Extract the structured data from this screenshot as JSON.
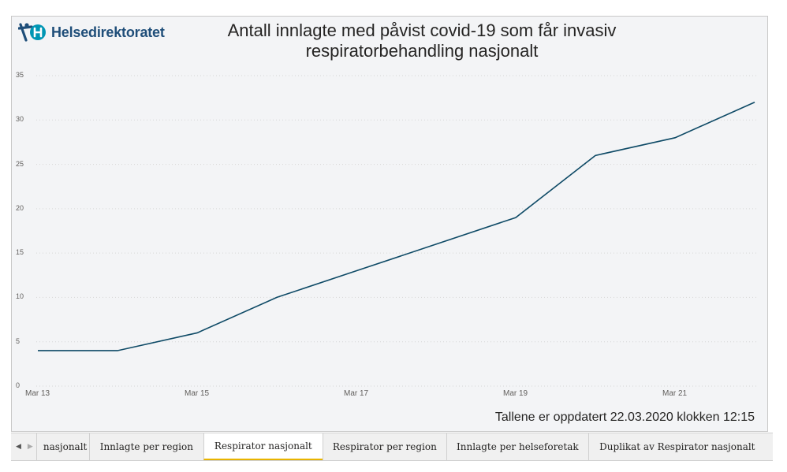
{
  "brand": {
    "name": "Helsedirektoratet",
    "colors": {
      "primary": "#1f4e79",
      "accent": "#0096b4"
    }
  },
  "chart_data": {
    "type": "line",
    "title": "Antall innlagte med påvist covid-19 som får invasiv respiratorbehandling nasjonalt",
    "x": [
      "Mar 13",
      "Mar 14",
      "Mar 15",
      "Mar 16",
      "Mar 17",
      "Mar 18",
      "Mar 19",
      "Mar 20",
      "Mar 21",
      "Mar 22"
    ],
    "x_tick_labels": [
      "Mar 13",
      "Mar 15",
      "Mar 17",
      "Mar 19",
      "Mar 21"
    ],
    "y_tick_labels": [
      "0",
      "5",
      "10",
      "15",
      "20",
      "25",
      "30",
      "35"
    ],
    "ylim": [
      0,
      35
    ],
    "series": [
      {
        "values": [
          4,
          4,
          6,
          10,
          13,
          16,
          19,
          26,
          28,
          32
        ],
        "color": "#0e4a66"
      }
    ],
    "grid": true
  },
  "footer_note": "Tallene er oppdatert 22.03.2020 klokken 12:15",
  "tabs": [
    {
      "label": "nasjonalt",
      "active": false
    },
    {
      "label": "Innlagte per region",
      "active": false
    },
    {
      "label": "Respirator nasjonalt",
      "active": true
    },
    {
      "label": "Respirator per region",
      "active": false
    },
    {
      "label": "Innlagte per helseforetak",
      "active": false
    },
    {
      "label": "Duplikat av Respirator nasjonalt",
      "active": false
    }
  ],
  "tab_nav": {
    "prev_icon": "caret-left-icon",
    "next_icon": "caret-right-icon"
  }
}
